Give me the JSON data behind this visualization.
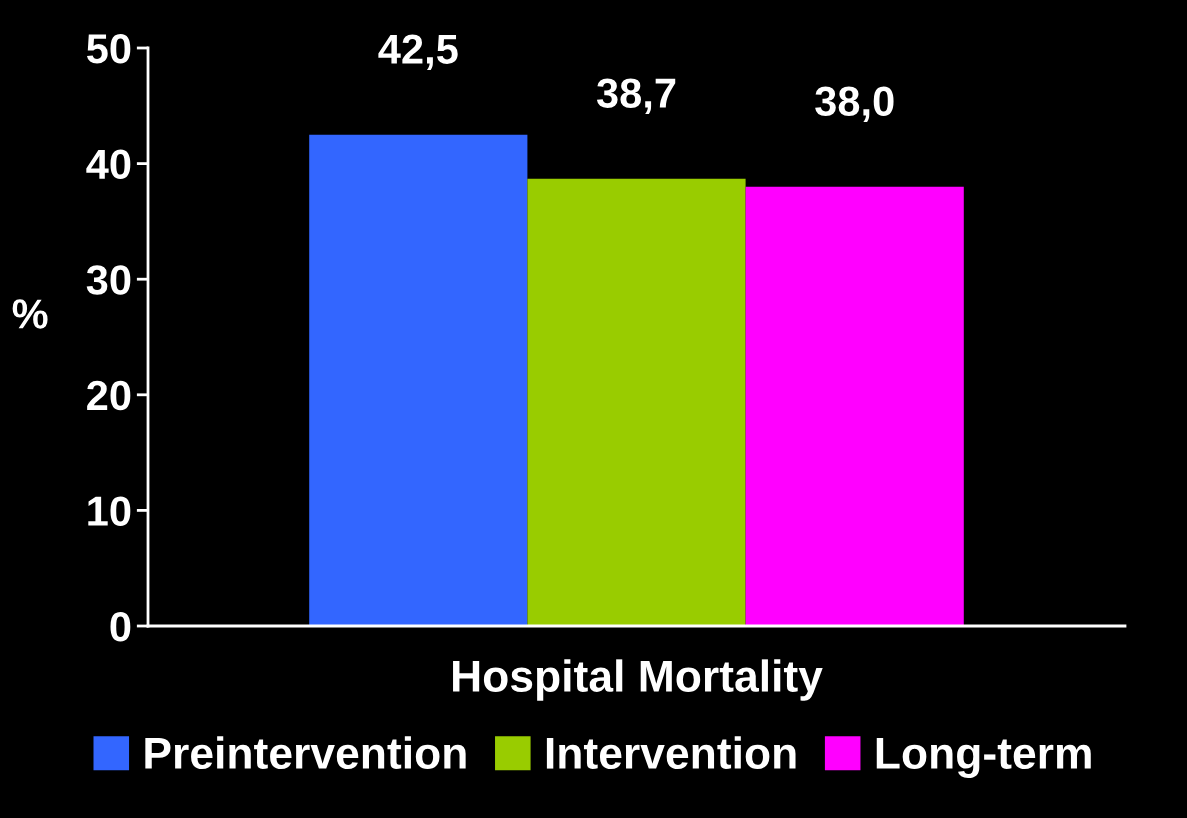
{
  "chart_data": {
    "type": "bar",
    "ylabel": "%",
    "categories": [
      "Hospital Mortality"
    ],
    "series": [
      {
        "name": "Preintervention",
        "color": "#3366ff",
        "values": [
          42.5
        ],
        "value_labels": [
          "42,5"
        ]
      },
      {
        "name": "Intervention",
        "color": "#99cc00",
        "values": [
          38.7
        ],
        "value_labels": [
          "38,7"
        ]
      },
      {
        "name": "Long-term",
        "color": "#ff00ff",
        "values": [
          38.0
        ],
        "value_labels": [
          "38,0"
        ]
      }
    ],
    "ylim": [
      0,
      50
    ],
    "yticks": [
      0,
      10,
      20,
      30,
      40,
      50
    ],
    "grid": false,
    "legend": "bottom"
  }
}
